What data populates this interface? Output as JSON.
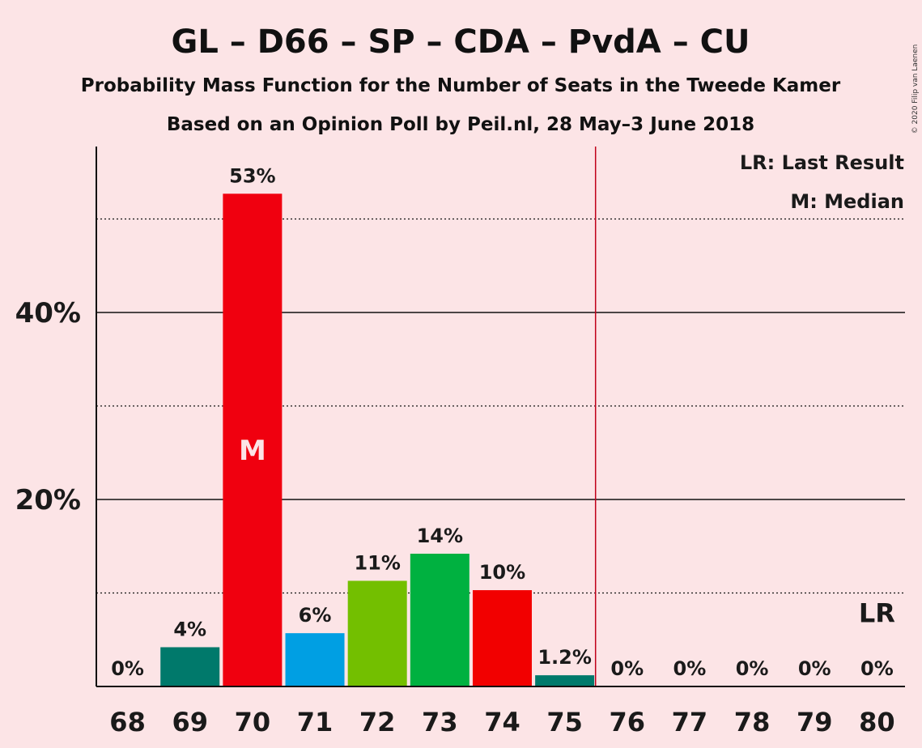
{
  "copyright": "© 2020 Filip van Laenen",
  "chart_data": {
    "type": "bar",
    "title": "GL – D66 – SP – CDA – PvdA – CU",
    "subtitle": "Probability Mass Function for the Number of Seats in the Tweede Kamer",
    "subtitle2": "Based on an Opinion Poll by Peil.nl, 28 May–3 June 2018",
    "legend": {
      "last_result": "LR: Last Result",
      "median": "M: Median"
    },
    "categories": [
      "68",
      "69",
      "70",
      "71",
      "72",
      "73",
      "74",
      "75",
      "76",
      "77",
      "78",
      "79",
      "80"
    ],
    "values": [
      0,
      4.2,
      52.7,
      5.7,
      11.3,
      14.2,
      10.3,
      1.2,
      0,
      0,
      0,
      0,
      0
    ],
    "data_labels": [
      "0%",
      "4%",
      "53%",
      "6%",
      "11%",
      "14%",
      "10%",
      "1.2%",
      "0%",
      "0%",
      "0%",
      "0%",
      "0%"
    ],
    "colors": [
      "#00796b",
      "#00796b",
      "#f0000f",
      "#009fe3",
      "#73bf00",
      "#00b140",
      "#f20000",
      "#00796b",
      "#00796b",
      "#00796b",
      "#00796b",
      "#00796b",
      "#00796b"
    ],
    "ylim": [
      0,
      57
    ],
    "yticks": [
      {
        "value": 20,
        "label": "20%"
      },
      {
        "value": 40,
        "label": "40%"
      }
    ],
    "minor_gridlines": [
      10,
      30,
      50
    ],
    "median_index": 2,
    "median_marker": "M",
    "last_result_index": 12,
    "last_result_marker": "LR",
    "majority_line_after": "75",
    "majority_line_color": "#c0001a",
    "background": "#fce4e6"
  }
}
